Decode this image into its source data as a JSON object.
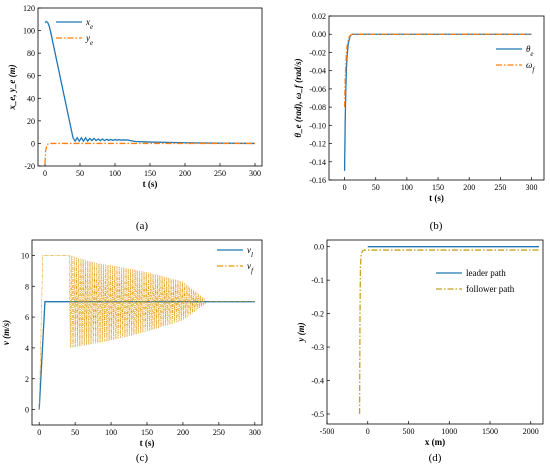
{
  "chart_data": [
    {
      "type": "line",
      "panel_label": "(a)",
      "xlabel": "t (s)",
      "ylabel": "x_e, y_e (m)",
      "xlim": [
        -10,
        310
      ],
      "ylim": [
        -20,
        120
      ],
      "xticks": [
        0,
        50,
        100,
        150,
        200,
        250,
        300
      ],
      "yticks": [
        -20,
        0,
        20,
        40,
        60,
        80,
        100,
        120
      ],
      "legend": "top-right",
      "series": [
        {
          "name": "x_e",
          "color": "#1f77b4",
          "style": "solid",
          "x": [
            0,
            2,
            4,
            6,
            8,
            40,
            43,
            46,
            49,
            52,
            55,
            58,
            61,
            64,
            67,
            70,
            73,
            76,
            79,
            82,
            85,
            88,
            91,
            94,
            97,
            100,
            103,
            106,
            109,
            112,
            115,
            118,
            121,
            124,
            127,
            130,
            150,
            200,
            250,
            300
          ],
          "y": [
            107,
            108,
            107,
            104,
            99,
            5,
            2,
            5,
            2,
            5,
            2,
            5,
            2,
            4.5,
            2.5,
            4.5,
            2.5,
            4,
            2.5,
            4,
            2.5,
            3.7,
            2.7,
            3.5,
            2.8,
            3.4,
            2.9,
            3.3,
            2.9,
            3.2,
            3,
            3.1,
            2.6,
            2.3,
            1.9,
            1.7,
            1.2,
            0.6,
            0.2,
            0
          ]
        },
        {
          "name": "y_e",
          "color": "#ff7f0e",
          "style": "dash-dot",
          "x": [
            0,
            1,
            3,
            6,
            10,
            15,
            300
          ],
          "y": [
            -18,
            -6,
            -1,
            0,
            0,
            0,
            0
          ]
        }
      ]
    },
    {
      "type": "line",
      "panel_label": "(b)",
      "xlabel": "t (s)",
      "ylabel": "θ_e (rad), ω_f (rad/s)",
      "xlim": [
        -25,
        320
      ],
      "ylim": [
        -0.16,
        0.02
      ],
      "xticks": [
        0,
        50,
        100,
        150,
        200,
        250,
        300
      ],
      "xtick_labels": [
        "0",
        "50",
        "100",
        "150",
        "200",
        "250",
        "300"
      ],
      "yticks": [
        -0.16,
        -0.14,
        -0.12,
        -0.1,
        -0.08,
        -0.06,
        -0.04,
        -0.02,
        0,
        0.02
      ],
      "ytick_labels": [
        "-0.16",
        "-0.14",
        "-0.12",
        "-0.10",
        "-0.08",
        "-0.06",
        "-0.04",
        "-0.02",
        "0.00",
        "0.02"
      ],
      "legend": "right",
      "series": [
        {
          "name": "θ_e",
          "color": "#1f77b4",
          "style": "solid",
          "x": [
            0,
            1,
            2,
            3,
            4,
            6,
            8,
            10,
            12,
            300
          ],
          "y": [
            -0.15,
            -0.095,
            -0.06,
            -0.038,
            -0.024,
            -0.01,
            -0.004,
            -0.001,
            0,
            0
          ]
        },
        {
          "name": "ω_f",
          "color": "#ff7f0e",
          "style": "dash-dot",
          "x": [
            0,
            1,
            2,
            3,
            4,
            6,
            8,
            10,
            13,
            300
          ],
          "y": [
            -0.08,
            -0.05,
            -0.033,
            -0.021,
            -0.013,
            -0.006,
            -0.002,
            -0.001,
            0,
            0
          ]
        }
      ]
    },
    {
      "type": "line",
      "panel_label": "(c)",
      "xlabel": "t (s)",
      "ylabel": "v (m/s)",
      "xlim": [
        -10,
        310
      ],
      "ylim": [
        -1,
        11
      ],
      "xticks": [
        0,
        50,
        100,
        150,
        200,
        250,
        300
      ],
      "yticks": [
        0,
        2,
        4,
        6,
        8,
        10
      ],
      "legend": "top-right",
      "series": [
        {
          "name": "v_l",
          "color": "#1f77b4",
          "style": "solid",
          "x": [
            0,
            8,
            300
          ],
          "y": [
            0,
            7,
            7
          ]
        },
        {
          "name": "v_f",
          "color": "#e29a0a",
          "style": "dash-dot",
          "oscillating": true,
          "x": [
            0,
            5,
            10,
            40,
            42,
            80,
            120,
            160,
            200,
            230,
            232,
            300
          ],
          "y_upper": [
            0,
            10,
            10,
            10,
            10,
            9.5,
            9.2,
            8.8,
            8.3,
            7.2,
            7,
            7
          ],
          "y_lower": [
            0,
            10,
            10,
            10,
            4,
            4.3,
            4.7,
            5.2,
            5.8,
            6.8,
            7,
            7
          ]
        }
      ]
    },
    {
      "type": "line",
      "panel_label": "(d)",
      "xlabel": "x (m)",
      "ylabel": "y (m)",
      "xlim": [
        -500,
        2150
      ],
      "ylim": [
        -0.53,
        0.02
      ],
      "xticks": [
        -500,
        0,
        500,
        1000,
        1500,
        2000
      ],
      "yticks": [
        -0.5,
        -0.4,
        -0.3,
        -0.2,
        -0.1,
        0
      ],
      "ytick_labels": [
        "-0.5",
        "-0.4",
        "-0.3",
        "-0.2",
        "-0.1",
        "0.0"
      ],
      "legend": "right",
      "series": [
        {
          "name": "leader path",
          "color": "#1f77b4",
          "style": "solid",
          "x": [
            0,
            2100
          ],
          "y": [
            0,
            0
          ]
        },
        {
          "name": "follower path",
          "color": "#c8a020",
          "style": "dash-dot",
          "x": [
            -100,
            -95,
            -90,
            -80,
            -60,
            -40,
            0,
            2100
          ],
          "y": [
            -0.5,
            -0.2,
            -0.06,
            -0.02,
            -0.012,
            -0.01,
            -0.01,
            -0.01
          ]
        }
      ]
    }
  ]
}
